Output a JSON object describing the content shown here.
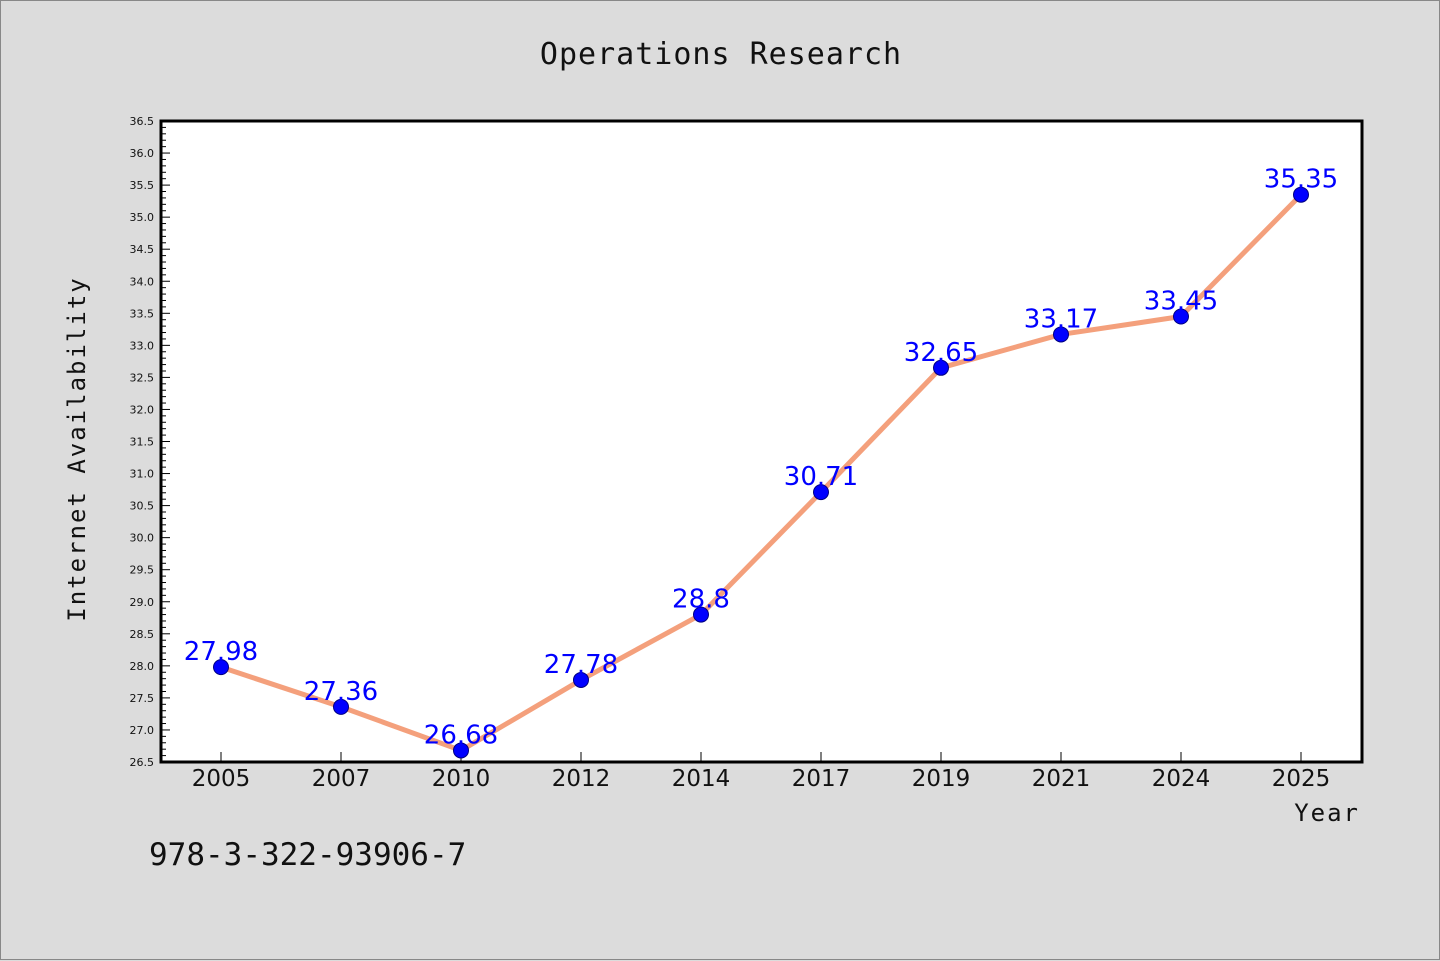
{
  "chart_data": {
    "type": "line",
    "title": "Operations Research",
    "xlabel": "Year",
    "ylabel": "Internet Availability",
    "categories": [
      "2005",
      "2007",
      "2010",
      "2012",
      "2014",
      "2017",
      "2019",
      "2021",
      "2024",
      "2025"
    ],
    "values": [
      27.98,
      27.36,
      26.68,
      27.78,
      28.8,
      30.71,
      32.65,
      33.17,
      33.45,
      35.35
    ],
    "data_labels": [
      "27.98",
      "27.36",
      "26.68",
      "27.78",
      "28.8",
      "30.71",
      "32.65",
      "33.17",
      "33.45",
      "35.35"
    ],
    "ylim": [
      26.5,
      36.5
    ],
    "yticks": [
      "26.5",
      "27.0",
      "27.5",
      "28.0",
      "28.5",
      "29.0",
      "29.5",
      "30.0",
      "30.5",
      "31.0",
      "31.5",
      "32.0",
      "32.5",
      "33.0",
      "33.5",
      "34.0",
      "34.5",
      "35.0",
      "35.5",
      "36.0",
      "36.5"
    ],
    "grid": false,
    "line_color": "#f4a07c",
    "marker_color": "#0000ff",
    "label_color": "#0000ff",
    "background": "#dcdcdc",
    "plot_background": "#ffffff"
  },
  "footer_code": "978-3-322-93906-7"
}
